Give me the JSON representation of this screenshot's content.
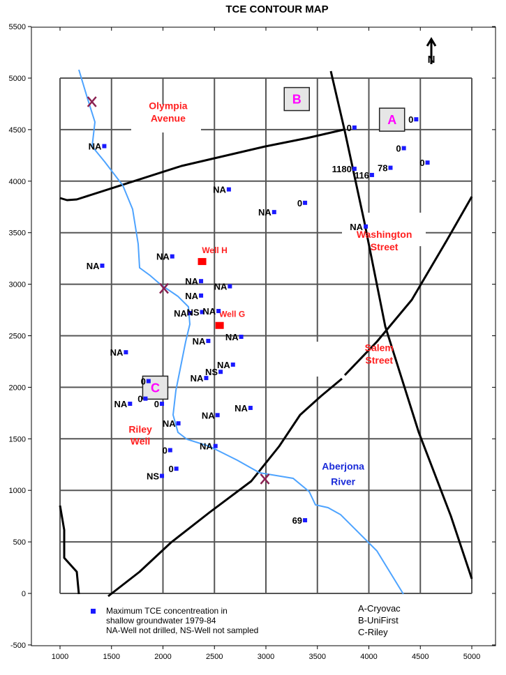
{
  "title": "TCE CONTOUR MAP",
  "axis": {
    "x_ticks": [
      "1000",
      "1500",
      "2000",
      "2500",
      "3000",
      "3500",
      "4000",
      "4500",
      "5000"
    ],
    "y_ticks": [
      "5500",
      "5000",
      "4500",
      "4000",
      "3500",
      "3000",
      "2500",
      "2000",
      "1500",
      "1000",
      "500",
      "0",
      "-500"
    ],
    "x_range": [
      850,
      5000
    ],
    "y_range": [
      -500,
      5500
    ]
  },
  "north_arrow": "N",
  "streets": [
    {
      "name": "olympia-avenue-label",
      "lines": [
        "Olympia",
        "Avenue"
      ],
      "x": 2050,
      "y": 4700
    },
    {
      "name": "washington-street-label",
      "lines": [
        "Washington",
        "Street"
      ],
      "x": 4150,
      "y": 3450
    },
    {
      "name": "salem-street-label",
      "lines": [
        "Salem",
        "Street"
      ],
      "x": 4100,
      "y": 2350
    }
  ],
  "river": {
    "lines": [
      "Aberjona",
      "River"
    ],
    "x": 3750,
    "y": 1200
  },
  "sites": [
    {
      "letter": "A",
      "x": 4225,
      "y": 4600
    },
    {
      "letter": "B",
      "x": 3300,
      "y": 4800
    },
    {
      "letter": "C",
      "x": 1925,
      "y": 2000
    }
  ],
  "named_wells": [
    {
      "label": "Well H",
      "x": 2380,
      "y": 3220
    },
    {
      "label": "Well G",
      "x": 2550,
      "y": 2600
    }
  ],
  "riley_well": {
    "lines": [
      "Riley",
      "Well"
    ],
    "x": 1780,
    "y": 1560
  },
  "wells": [
    {
      "label": "NA",
      "x": 1430,
      "y": 4340
    },
    {
      "label": "0",
      "x": 3860,
      "y": 4520
    },
    {
      "label": "0",
      "x": 4460,
      "y": 4600
    },
    {
      "label": "0",
      "x": 4340,
      "y": 4320
    },
    {
      "label": "0",
      "x": 4570,
      "y": 4180
    },
    {
      "label": "1180",
      "x": 3860,
      "y": 4120
    },
    {
      "label": "78",
      "x": 4210,
      "y": 4130
    },
    {
      "label": "116",
      "x": 4030,
      "y": 4060
    },
    {
      "label": "NA",
      "x": 2640,
      "y": 3920
    },
    {
      "label": "0",
      "x": 3380,
      "y": 3790
    },
    {
      "label": "NA",
      "x": 3080,
      "y": 3700
    },
    {
      "label": "NA",
      "x": 3970,
      "y": 3560
    },
    {
      "label": "NA",
      "x": 2090,
      "y": 3270
    },
    {
      "label": "NA",
      "x": 1410,
      "y": 3180
    },
    {
      "label": "NA",
      "x": 2370,
      "y": 3030
    },
    {
      "label": "NA",
      "x": 2650,
      "y": 2980
    },
    {
      "label": "NA",
      "x": 2370,
      "y": 2890
    },
    {
      "label": "NA",
      "x": 2260,
      "y": 2720
    },
    {
      "label": "NS",
      "x": 2380,
      "y": 2730
    },
    {
      "label": "NA",
      "x": 2540,
      "y": 2740
    },
    {
      "label": "NA",
      "x": 2440,
      "y": 2450
    },
    {
      "label": "NA",
      "x": 2760,
      "y": 2490
    },
    {
      "label": "NA",
      "x": 1640,
      "y": 2340
    },
    {
      "label": "NA",
      "x": 2680,
      "y": 2220
    },
    {
      "label": "NS",
      "x": 2560,
      "y": 2150
    },
    {
      "label": "NA",
      "x": 2420,
      "y": 2090
    },
    {
      "label": "0",
      "x": 1860,
      "y": 2060
    },
    {
      "label": "0",
      "x": 1830,
      "y": 1890
    },
    {
      "label": "NA",
      "x": 1680,
      "y": 1840
    },
    {
      "label": "0",
      "x": 1990,
      "y": 1840
    },
    {
      "label": "NA",
      "x": 2850,
      "y": 1800
    },
    {
      "label": "NA",
      "x": 2530,
      "y": 1730
    },
    {
      "label": "NA",
      "x": 2150,
      "y": 1650
    },
    {
      "label": "NA",
      "x": 2510,
      "y": 1430
    },
    {
      "label": "0",
      "x": 2070,
      "y": 1390
    },
    {
      "label": "0",
      "x": 2130,
      "y": 1210
    },
    {
      "label": "NS",
      "x": 1990,
      "y": 1140
    },
    {
      "label": "69",
      "x": 3380,
      "y": 710
    }
  ],
  "contamination_marks": [
    {
      "x": 1310,
      "y": 4770
    },
    {
      "x": 2010,
      "y": 2960
    },
    {
      "x": 2990,
      "y": 1110
    }
  ],
  "legend": {
    "lines": [
      "Maximum TCE concentreation in",
      "shallow groundwater 1979-84",
      "NA-Well not drilled, NS-Well not sampled"
    ]
  },
  "key": {
    "lines": [
      "A-Cryovac",
      "B-UniFirst",
      "C-Riley"
    ]
  },
  "colors": {
    "well_marker": "#1a1aff",
    "named_well": "#ff0000",
    "river": "#4da3ff",
    "street_label": "#ff2020",
    "site_letter": "#ff00ff",
    "contamination_mark": "#8b2252"
  }
}
